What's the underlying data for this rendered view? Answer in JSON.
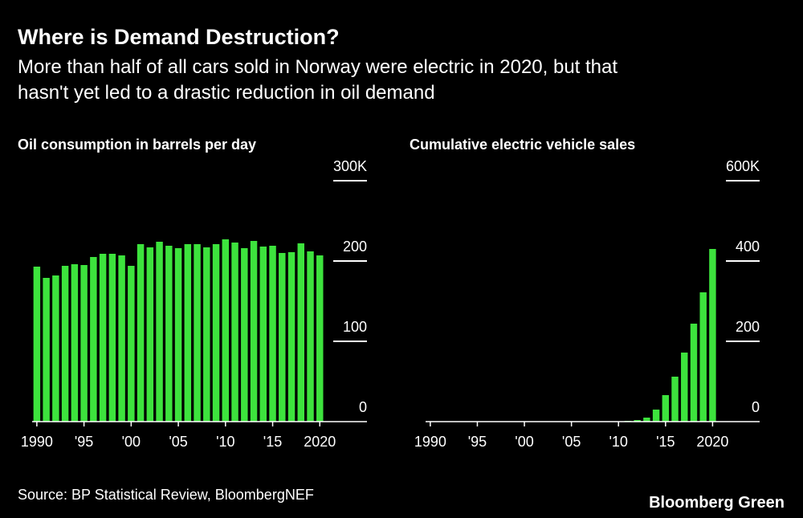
{
  "title": "Where is Demand Destruction?",
  "subtitle": [
    "More than half of all cars sold in Norway were electric in 2020, but that",
    "hasn't yet led to a drastic reduction in oil demand"
  ],
  "chart_data": [
    {
      "type": "bar",
      "title": "Oil consumption in barrels per day",
      "color": "#3de33d",
      "x": [
        1990,
        1991,
        1992,
        1993,
        1994,
        1995,
        1996,
        1997,
        1998,
        1999,
        2000,
        2001,
        2002,
        2003,
        2004,
        2005,
        2006,
        2007,
        2008,
        2009,
        2010,
        2011,
        2012,
        2013,
        2014,
        2015,
        2016,
        2017,
        2018,
        2019,
        2020
      ],
      "values": [
        193,
        179,
        182,
        194,
        196,
        195,
        205,
        209,
        209,
        207,
        194,
        221,
        217,
        224,
        219,
        216,
        221,
        221,
        217,
        221,
        227,
        223,
        216,
        225,
        218,
        219,
        210,
        211,
        222,
        212,
        207
      ],
      "xlim": [
        1989.5,
        2025
      ],
      "ylim": [
        0,
        300
      ],
      "xticks": [
        1990,
        {
          "value": 1995,
          "label": "'95"
        },
        {
          "value": 2000,
          "label": "'00"
        },
        {
          "value": 2005,
          "label": "'05"
        },
        {
          "value": 2010,
          "label": "'10"
        },
        {
          "value": 2015,
          "label": "'15"
        },
        2020
      ],
      "yticks": [
        0,
        100,
        200,
        {
          "value": 300,
          "label": "300K"
        }
      ]
    },
    {
      "type": "bar",
      "title": "Cumulative electric vehicle sales",
      "color": "#3de33d",
      "x": [
        1990,
        1991,
        1992,
        1993,
        1994,
        1995,
        1996,
        1997,
        1998,
        1999,
        2000,
        2001,
        2002,
        2003,
        2004,
        2005,
        2006,
        2007,
        2008,
        2009,
        2010,
        2011,
        2012,
        2013,
        2014,
        2015,
        2016,
        2017,
        2018,
        2019,
        2020
      ],
      "values": [
        0,
        0,
        0,
        0,
        0,
        0,
        0,
        0,
        0,
        0,
        0,
        0,
        0,
        0,
        0,
        0,
        0,
        0,
        0,
        0,
        1,
        2,
        4,
        10,
        30,
        66,
        112,
        172,
        244,
        322,
        430
      ],
      "xlim": [
        1989.5,
        2025
      ],
      "ylim": [
        0,
        600
      ],
      "xticks": [
        1990,
        {
          "value": 1995,
          "label": "'95"
        },
        {
          "value": 2000,
          "label": "'00"
        },
        {
          "value": 2005,
          "label": "'05"
        },
        {
          "value": 2010,
          "label": "'10"
        },
        {
          "value": 2015,
          "label": "'15"
        },
        2020
      ],
      "yticks": [
        0,
        200,
        400,
        {
          "value": 600,
          "label": "600K"
        }
      ]
    }
  ],
  "source": "Source: BP Statistical Review, BloombergNEF",
  "brand": "Bloomberg Green"
}
